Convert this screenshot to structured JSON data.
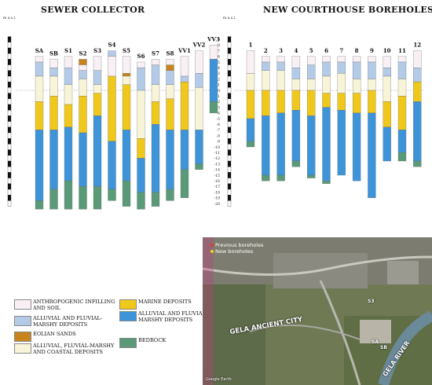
{
  "titles": {
    "sewer": "SEWER COLLECTOR",
    "courthouse": "NEW COURTHOUSE BOREHOLES"
  },
  "axis": {
    "unit": "m a.s.l.",
    "ticks": [
      "9",
      "8",
      "7",
      "6",
      "5",
      "4",
      "3",
      "2",
      "1",
      "0",
      "-1",
      "-2",
      "-3",
      "-4",
      "-5",
      "-6",
      "-7",
      "-8",
      "-9",
      "-10",
      "-11",
      "-12",
      "-13",
      "-14",
      "-15",
      "-16",
      "-17",
      "-18",
      "-19",
      "-20"
    ]
  },
  "colors": {
    "anthropogenic": "#f8f0f4",
    "alluvial_marshy": "#b4cbe8",
    "eolian": "#c8841c",
    "coastal": "#f8f4d8",
    "marine": "#f0c81c",
    "alluvial_deposits": "#3e94d8",
    "bedrock": "#5a9a78"
  },
  "legend": [
    {
      "id": "anthropogenic",
      "label": "ANTHROPOGENIC INFILLING AND SOIL"
    },
    {
      "id": "alluvial_marshy",
      "label": "ALLUVIAL AND FLUVIAL-MARSHY DEPOSITS"
    },
    {
      "id": "eolian",
      "label": "EOLIAN SANDS"
    },
    {
      "id": "coastal",
      "label": "ALLUVIAL, FLUVIAL-MARSHY AND COASTAL DEPOSITS"
    },
    {
      "id": "marine",
      "label": "MARINE DEPOSITS"
    },
    {
      "id": "alluvial_deposits",
      "label": "ALLUVIAL AND FLUVIAL-MARSHY DEPOSITS"
    },
    {
      "id": "bedrock",
      "label": "BEDROCK"
    }
  ],
  "boreholes_sewer": [
    {
      "name": "SA",
      "layers": [
        [
          "anthropogenic",
          6,
          5
        ],
        [
          "alluvial_marshy",
          5,
          2.5
        ],
        [
          "coastal",
          2.5,
          -2
        ],
        [
          "marine",
          -2,
          -7
        ],
        [
          "alluvial_deposits",
          -7,
          -19.5
        ],
        [
          "bedrock",
          -19.5,
          -21
        ]
      ]
    },
    {
      "name": "SB",
      "layers": [
        [
          "anthropogenic",
          5.5,
          4
        ],
        [
          "alluvial_marshy",
          4,
          2.5
        ],
        [
          "coastal",
          2.5,
          -1
        ],
        [
          "marine",
          -1,
          -7
        ],
        [
          "alluvial_deposits",
          -7,
          -17.5
        ],
        [
          "bedrock",
          -17.5,
          -21
        ]
      ]
    },
    {
      "name": "S1",
      "layers": [
        [
          "anthropogenic",
          6,
          4
        ],
        [
          "alluvial_marshy",
          4,
          1
        ],
        [
          "coastal",
          1,
          -2.5
        ],
        [
          "marine",
          -2.5,
          -6.5
        ],
        [
          "alluvial_deposits",
          -6.5,
          -16
        ],
        [
          "bedrock",
          -16,
          -21
        ]
      ]
    },
    {
      "name": "S2",
      "layers": [
        [
          "eolian",
          5.5,
          4.5
        ],
        [
          "anthropogenic",
          4.5,
          3.5
        ],
        [
          "alluvial_marshy",
          3.5,
          2
        ],
        [
          "coastal",
          2,
          -1
        ],
        [
          "marine",
          -1,
          -7.5
        ],
        [
          "alluvial_deposits",
          -7.5,
          -17
        ],
        [
          "bedrock",
          -17,
          -21
        ]
      ]
    },
    {
      "name": "S3",
      "layers": [
        [
          "anthropogenic",
          6,
          3.5
        ],
        [
          "alluvial_marshy",
          3.5,
          1
        ],
        [
          "coastal",
          1,
          -0.5
        ],
        [
          "marine",
          -0.5,
          -4.5
        ],
        [
          "alluvial_deposits",
          -4.5,
          -17
        ],
        [
          "bedrock",
          -17,
          -21
        ]
      ]
    },
    {
      "name": "S4",
      "layers": [
        [
          "alluvial_marshy",
          7,
          6
        ],
        [
          "anthropogenic",
          6,
          2.5
        ],
        [
          "marine",
          2.5,
          -9
        ],
        [
          "alluvial_deposits",
          -9,
          -17.5
        ],
        [
          "bedrock",
          -17.5,
          -19.5
        ]
      ]
    },
    {
      "name": "S5",
      "layers": [
        [
          "anthropogenic",
          6,
          3
        ],
        [
          "eolian",
          3,
          2.5
        ],
        [
          "coastal",
          2.5,
          1
        ],
        [
          "marine",
          1,
          -7
        ],
        [
          "alluvial_deposits",
          -7,
          -16
        ],
        [
          "bedrock",
          -16,
          -20.5
        ]
      ]
    },
    {
      "name": "S6",
      "layers": [
        [
          "anthropogenic",
          5,
          4
        ],
        [
          "alluvial_marshy",
          4,
          0
        ],
        [
          "coastal",
          0,
          -8.5
        ],
        [
          "marine",
          -8.5,
          -12
        ],
        [
          "alluvial_deposits",
          -12,
          -18
        ],
        [
          "bedrock",
          -18,
          -21
        ]
      ]
    },
    {
      "name": "S7",
      "layers": [
        [
          "anthropogenic",
          5.5,
          4.5
        ],
        [
          "alluvial_marshy",
          4.5,
          1
        ],
        [
          "coastal",
          1,
          -2
        ],
        [
          "marine",
          -2,
          -6
        ],
        [
          "alluvial_deposits",
          -6,
          -18
        ],
        [
          "bedrock",
          -18,
          -20.5
        ]
      ]
    },
    {
      "name": "S8",
      "layers": [
        [
          "anthropogenic",
          5.5,
          4.5
        ],
        [
          "eolian",
          4.5,
          3.5
        ],
        [
          "alluvial_marshy",
          3.5,
          1
        ],
        [
          "coastal",
          1,
          -1.5
        ],
        [
          "marine",
          -1.5,
          -7
        ],
        [
          "alluvial_deposits",
          -7,
          -17.5
        ],
        [
          "bedrock",
          -17.5,
          -19.5
        ]
      ]
    },
    {
      "name": "VV1",
      "layers": [
        [
          "anthropogenic",
          6,
          2.5
        ],
        [
          "alluvial_marshy",
          2.5,
          1.5
        ],
        [
          "marine",
          1.5,
          -7
        ],
        [
          "alluvial_deposits",
          -7,
          -14
        ],
        [
          "bedrock",
          -14,
          -19
        ]
      ]
    },
    {
      "name": "VV2",
      "layers": [
        [
          "anthropogenic",
          7,
          3
        ],
        [
          "alluvial_marshy",
          3,
          0.5
        ],
        [
          "coastal",
          0.5,
          -7
        ],
        [
          "alluvial_deposits",
          -7,
          -13
        ],
        [
          "bedrock",
          -13,
          -14
        ]
      ]
    },
    {
      "name": "VV3",
      "layers": [
        [
          "anthropogenic",
          8,
          5.5
        ],
        [
          "alluvial_deposits",
          5.5,
          -2
        ],
        [
          "bedrock",
          -2,
          -4
        ]
      ]
    }
  ],
  "boreholes_courthouse": [
    {
      "name": "1",
      "layers": [
        [
          "anthropogenic",
          7,
          3
        ],
        [
          "coastal",
          3,
          0
        ],
        [
          "marine",
          0,
          -5
        ],
        [
          "alluvial_deposits",
          -5,
          -9
        ],
        [
          "bedrock",
          -9,
          -10
        ]
      ]
    },
    {
      "name": "2",
      "layers": [
        [
          "anthropogenic",
          6,
          5
        ],
        [
          "alluvial_marshy",
          5,
          3.5
        ],
        [
          "coastal",
          3.5,
          0
        ],
        [
          "marine",
          0,
          -4.5
        ],
        [
          "alluvial_deposits",
          -4.5,
          -15
        ],
        [
          "bedrock",
          -15,
          -16
        ]
      ]
    },
    {
      "name": "3",
      "layers": [
        [
          "anthropogenic",
          6,
          5
        ],
        [
          "alluvial_marshy",
          5,
          3.5
        ],
        [
          "coastal",
          3.5,
          0
        ],
        [
          "marine",
          0,
          -4
        ],
        [
          "alluvial_deposits",
          -4,
          -15
        ],
        [
          "bedrock",
          -15,
          -16
        ]
      ]
    },
    {
      "name": "4",
      "layers": [
        [
          "anthropogenic",
          6,
          4
        ],
        [
          "alluvial_marshy",
          4,
          2
        ],
        [
          "coastal",
          2,
          0
        ],
        [
          "marine",
          0,
          -3.5
        ],
        [
          "alluvial_deposits",
          -3.5,
          -12.5
        ],
        [
          "bedrock",
          -12.5,
          -13.5
        ]
      ]
    },
    {
      "name": "5",
      "layers": [
        [
          "anthropogenic",
          6,
          4.5
        ],
        [
          "alluvial_marshy",
          4.5,
          2
        ],
        [
          "coastal",
          2,
          0
        ],
        [
          "marine",
          0,
          -4.5
        ],
        [
          "alluvial_deposits",
          -4.5,
          -15
        ],
        [
          "bedrock",
          -15,
          -15.5
        ]
      ]
    },
    {
      "name": "6",
      "layers": [
        [
          "anthropogenic",
          6,
          5
        ],
        [
          "alluvial_marshy",
          5,
          2.5
        ],
        [
          "coastal",
          2.5,
          -0.5
        ],
        [
          "marine",
          -0.5,
          -3
        ],
        [
          "alluvial_deposits",
          -3,
          -16
        ],
        [
          "bedrock",
          -16,
          -16.5
        ]
      ]
    },
    {
      "name": "7",
      "layers": [
        [
          "anthropogenic",
          6,
          5
        ],
        [
          "alluvial_marshy",
          5,
          3
        ],
        [
          "coastal",
          3,
          -0.5
        ],
        [
          "marine",
          -0.5,
          -3.5
        ],
        [
          "alluvial_deposits",
          -3.5,
          -15
        ]
      ]
    },
    {
      "name": "8",
      "layers": [
        [
          "anthropogenic",
          6,
          5
        ],
        [
          "alluvial_marshy",
          5,
          2
        ],
        [
          "coastal",
          2,
          -0.5
        ],
        [
          "marine",
          -0.5,
          -4
        ],
        [
          "alluvial_deposits",
          -4,
          -16
        ]
      ]
    },
    {
      "name": "9",
      "layers": [
        [
          "anthropogenic",
          6,
          5
        ],
        [
          "alluvial_marshy",
          5,
          2
        ],
        [
          "coastal",
          2,
          0
        ],
        [
          "marine",
          0,
          -4
        ],
        [
          "alluvial_deposits",
          -4,
          -19
        ]
      ]
    },
    {
      "name": "10",
      "layers": [
        [
          "anthropogenic",
          6,
          4
        ],
        [
          "alluvial_marshy",
          4,
          2.5
        ],
        [
          "coastal",
          2.5,
          -2
        ],
        [
          "marine",
          -2,
          -6.5
        ],
        [
          "alluvial_deposits",
          -6.5,
          -12.5
        ]
      ]
    },
    {
      "name": "11",
      "layers": [
        [
          "anthropogenic",
          6,
          5
        ],
        [
          "alluvial_marshy",
          5,
          2
        ],
        [
          "coastal",
          2,
          -1
        ],
        [
          "marine",
          -1,
          -7
        ],
        [
          "alluvial_deposits",
          -7,
          -11
        ],
        [
          "bedrock",
          -11,
          -12.5
        ]
      ]
    },
    {
      "name": "12",
      "layers": [
        [
          "anthropogenic",
          7,
          4
        ],
        [
          "alluvial_marshy",
          4,
          1.5
        ],
        [
          "marine",
          1.5,
          -2
        ],
        [
          "alluvial_deposits",
          -2,
          -12.5
        ],
        [
          "bedrock",
          -12.5,
          -13.5
        ]
      ]
    }
  ],
  "map": {
    "key_previous": "Previous boreholes",
    "key_new": "New boreholes",
    "label_city": "GELA ANCIENT CITY",
    "label_river": "GELA RIVER",
    "label_s3": "S3",
    "label_sa": "SA",
    "label_sb": "SB",
    "credit": "Google Earth"
  }
}
